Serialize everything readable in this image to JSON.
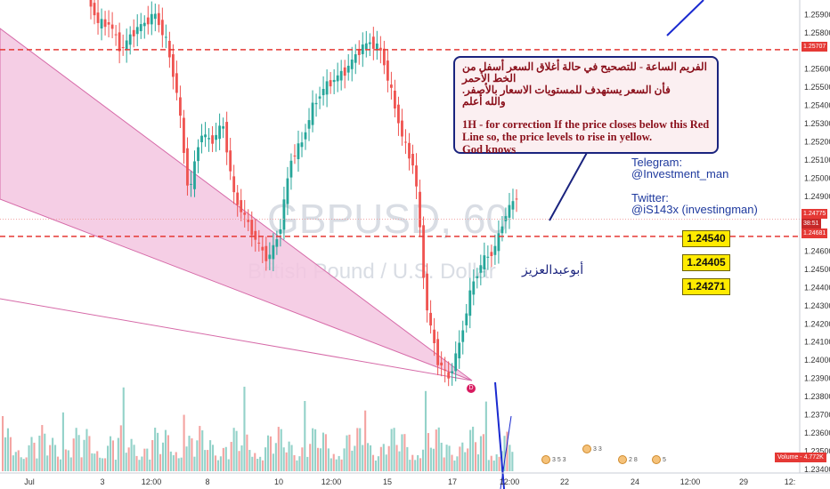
{
  "chart_data": {
    "type": "candlestick",
    "symbol_watermark": "GBPUSD, 60",
    "description_watermark": "British Pound / U.S. Dollar",
    "y_ticks": [
      "1.25900",
      "1.25800",
      "1.25600",
      "1.25500",
      "1.25400",
      "1.25300",
      "1.25200",
      "1.25100",
      "1.25000",
      "1.24900",
      "1.24600",
      "1.24500",
      "1.24400",
      "1.24300",
      "1.24200",
      "1.24100",
      "1.24000",
      "1.23900",
      "1.23800",
      "1.23700",
      "1.23600",
      "1.23500",
      "1.23400"
    ],
    "y_range": [
      1.234,
      1.2597
    ],
    "price_labels": [
      {
        "value": "1.25707",
        "price": 1.25707
      },
      {
        "value": "1.24775",
        "price": 1.24775
      },
      {
        "value": "38:51",
        "price": 1.24725
      },
      {
        "value": "1.24681",
        "price": 1.24681
      }
    ],
    "x_ticks": [
      "Jul",
      "3",
      "12:00",
      "8",
      "10",
      "12:00",
      "15",
      "17",
      "12:00",
      "22",
      "24",
      "12:00",
      "29",
      "12:"
    ],
    "red_dashed_levels": [
      1.25707,
      1.24681
    ],
    "volume_label": "Volume",
    "volume_value": "4.772K",
    "volume_text": "Volume - 4.772K",
    "pattern_point_label": "D",
    "price_path": [
      1.26,
      1.2585,
      1.2585,
      1.257,
      1.258,
      1.2585,
      1.259,
      1.2575,
      1.2545,
      1.249,
      1.2525,
      1.252,
      1.253,
      1.249,
      1.2478,
      1.2465,
      1.2455,
      1.247,
      1.251,
      1.252,
      1.254,
      1.255,
      1.2555,
      1.256,
      1.257,
      1.2575,
      1.257,
      1.2545,
      1.252,
      1.2505,
      1.243,
      1.24,
      1.239,
      1.241,
      1.244,
      1.2455,
      1.246,
      1.248,
      1.249
    ]
  },
  "annotation": {
    "arabic_line1": "الفريم الساعة - للتصحيح في حالة أغلاق السعر أسفل من الخط الأحمر",
    "arabic_line2": "فأن السعر يستهدف للمستويات الاسعار بالأصفر.",
    "arabic_line3": "والله أعلم",
    "english_line1": "1H - for correction If the price closes below this Red",
    "english_line2": "Line so, the price levels to rise in yellow.",
    "english_line3": "God knows"
  },
  "social": {
    "telegram_label": "Telegram:",
    "telegram_handle": "@Investment_man",
    "twitter_label": "Twitter:",
    "twitter_handle": "@iS143x (investingman)"
  },
  "target_levels": [
    "1.24540",
    "1.24405",
    "1.24271"
  ],
  "author_name": "أبوعبدالعزيز",
  "event_counts": [
    "3",
    "5",
    "3",
    "3",
    "3",
    "2",
    "8",
    "5"
  ],
  "colors": {
    "up": "#26a69a",
    "down": "#ef5350",
    "red_line": "#e53935",
    "pattern_fill": "#f3c6e0",
    "pattern_edge": "#d66aa8",
    "callout_border": "#1a237e",
    "level_fill": "#ffeb00",
    "trend_line": "#1a2ad0"
  }
}
